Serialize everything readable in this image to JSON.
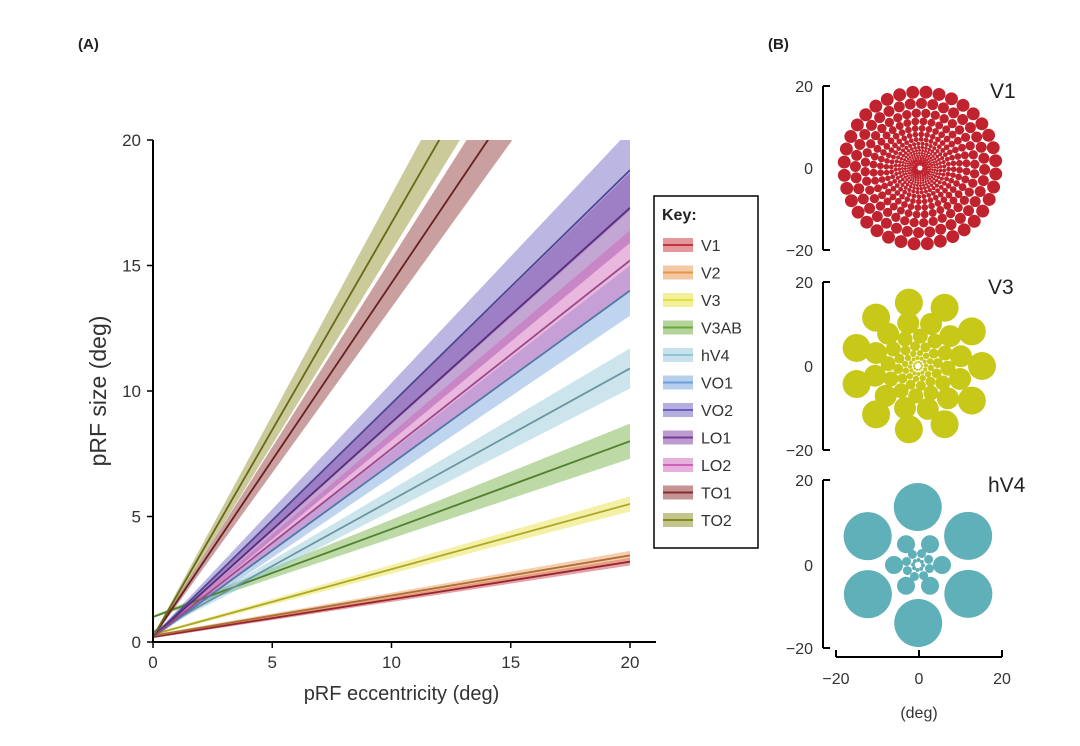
{
  "chart_data": [
    {
      "type": "line",
      "panel_label": "(A)",
      "xlabel": "pRF eccentricity (deg)",
      "ylabel": "pRF size (deg)",
      "xlim": [
        0,
        20
      ],
      "ylim": [
        0,
        20
      ],
      "xticks": [
        "0",
        "5",
        "10",
        "15",
        "20"
      ],
      "yticks": [
        "0",
        "5",
        "10",
        "15",
        "20"
      ],
      "legend_title": "Key:",
      "legend_position": "right",
      "series": [
        {
          "name": "V1",
          "color": "#c8323c",
          "intercept": 0.2,
          "slope": 0.15,
          "band": 0.15
        },
        {
          "name": "V2",
          "color": "#e8934a",
          "intercept": 0.25,
          "slope": 0.16,
          "band": 0.18
        },
        {
          "name": "V3",
          "color": "#e6e03a",
          "intercept": 0.3,
          "slope": 0.26,
          "band": 0.3
        },
        {
          "name": "V3AB",
          "color": "#6aaa3a",
          "intercept": 1.0,
          "slope": 0.35,
          "band": 0.7
        },
        {
          "name": "hV4",
          "color": "#8fc6d8",
          "intercept": 0.4,
          "slope": 0.525,
          "band": 0.8
        },
        {
          "name": "VO1",
          "color": "#6e9fdc",
          "intercept": 0.2,
          "slope": 0.69,
          "band": 1.0
        },
        {
          "name": "VO2",
          "color": "#6a5ec0",
          "intercept": 0.2,
          "slope": 0.93,
          "band": 1.6
        },
        {
          "name": "LO1",
          "color": "#7a3aa0",
          "intercept": 0.2,
          "slope": 0.855,
          "band": 1.4
        },
        {
          "name": "LO2",
          "color": "#d060b8",
          "intercept": 0.2,
          "slope": 0.75,
          "band": 1.2
        },
        {
          "name": "TO1",
          "color": "#8a2a2a",
          "intercept": 0.2,
          "slope": 1.41,
          "band": 1.9
        },
        {
          "name": "TO2",
          "color": "#8a8a20",
          "intercept": 0.2,
          "slope": 1.65,
          "band": 2.2
        }
      ]
    },
    {
      "type": "scatter",
      "panel_label": "(B)",
      "xlabel": "(deg)",
      "xticks": [
        "−20",
        "0",
        "20"
      ],
      "yticks": [
        "20",
        "0",
        "−20"
      ],
      "maps": [
        {
          "name": "V1",
          "color": "#c0222e"
        },
        {
          "name": "V3",
          "color": "#c8c818"
        },
        {
          "name": "hV4",
          "color": "#5fb0b8"
        }
      ]
    }
  ]
}
